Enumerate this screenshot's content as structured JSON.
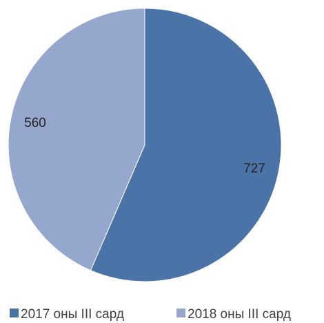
{
  "chart_data": {
    "type": "pie",
    "title": "",
    "categories": [
      "2017 оны III сард",
      "2018 оны III сард"
    ],
    "values": [
      727,
      560
    ],
    "colors": [
      "#4a73a8",
      "#95a7cd"
    ],
    "data_labels": [
      "727",
      "560"
    ],
    "legend": "bottom"
  }
}
